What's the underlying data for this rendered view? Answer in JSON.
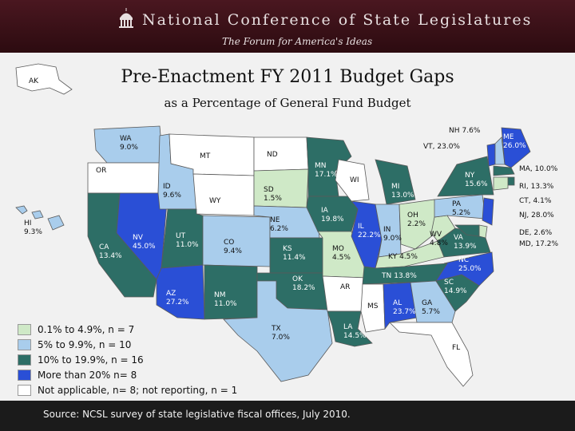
{
  "header": {
    "organization": "National Conference of State Legislatures",
    "tagline": "The Forum for America's Ideas"
  },
  "title": "Pre-Enactment FY 2011 Budget Gaps",
  "subtitle": "as a Percentage of General Fund Budget",
  "colors": {
    "na": "#ffffff",
    "low": "#cfe9c7",
    "mid": "#a9cdec",
    "high": "#2d6e66",
    "top": "#2a4fd6"
  },
  "legend": [
    {
      "category": "low",
      "label": "0.1% to 4.9%, n = 7"
    },
    {
      "category": "mid",
      "label": "5% to 9.9%, n = 10"
    },
    {
      "category": "high",
      "label": "10% to 19.9%, n = 16"
    },
    {
      "category": "top",
      "label": "More than 20% n= 8"
    },
    {
      "category": "na",
      "label": "Not applicable, n= 8; not reporting, n = 1"
    }
  ],
  "states": [
    {
      "abbr": "AK",
      "value": "",
      "category": "na"
    },
    {
      "abbr": "HI",
      "value": "9.3%",
      "category": "mid"
    },
    {
      "abbr": "WA",
      "value": "9.0%",
      "category": "mid"
    },
    {
      "abbr": "OR",
      "value": "",
      "category": "na"
    },
    {
      "abbr": "CA",
      "value": "13.4%",
      "category": "high"
    },
    {
      "abbr": "NV",
      "value": "45.0%",
      "category": "top"
    },
    {
      "abbr": "ID",
      "value": "9.6%",
      "category": "mid"
    },
    {
      "abbr": "MT",
      "value": "",
      "category": "na"
    },
    {
      "abbr": "WY",
      "value": "",
      "category": "na"
    },
    {
      "abbr": "UT",
      "value": "11.0%",
      "category": "high"
    },
    {
      "abbr": "CO",
      "value": "9.4%",
      "category": "mid"
    },
    {
      "abbr": "AZ",
      "value": "27.2%",
      "category": "top"
    },
    {
      "abbr": "NM",
      "value": "11.0%",
      "category": "high"
    },
    {
      "abbr": "ND",
      "value": "",
      "category": "na"
    },
    {
      "abbr": "SD",
      "value": "1.5%",
      "category": "low"
    },
    {
      "abbr": "NE",
      "value": "6.2%",
      "category": "mid"
    },
    {
      "abbr": "KS",
      "value": "11.4%",
      "category": "high"
    },
    {
      "abbr": "OK",
      "value": "18.2%",
      "category": "high"
    },
    {
      "abbr": "TX",
      "value": "7.0%",
      "category": "mid"
    },
    {
      "abbr": "MN",
      "value": "17.1%",
      "category": "high"
    },
    {
      "abbr": "IA",
      "value": "19.8%",
      "category": "high"
    },
    {
      "abbr": "MO",
      "value": "4.5%",
      "category": "low"
    },
    {
      "abbr": "AR",
      "value": "",
      "category": "na"
    },
    {
      "abbr": "LA",
      "value": "14.5%",
      "category": "high"
    },
    {
      "abbr": "WI",
      "value": "",
      "category": "na"
    },
    {
      "abbr": "IL",
      "value": "22.2%",
      "category": "top"
    },
    {
      "abbr": "IN",
      "value": "9.0%",
      "category": "mid"
    },
    {
      "abbr": "MI",
      "value": "13.0%",
      "category": "high"
    },
    {
      "abbr": "OH",
      "value": "2.2%",
      "category": "low"
    },
    {
      "abbr": "KY",
      "value": "4.5%",
      "category": "low"
    },
    {
      "abbr": "TN",
      "value": "13.8%",
      "category": "high"
    },
    {
      "abbr": "MS",
      "value": "",
      "category": "na"
    },
    {
      "abbr": "AL",
      "value": "23.7%",
      "category": "top"
    },
    {
      "abbr": "GA",
      "value": "5.7%",
      "category": "mid"
    },
    {
      "abbr": "FL",
      "value": "",
      "category": "na"
    },
    {
      "abbr": "SC",
      "value": "14.9%",
      "category": "high"
    },
    {
      "abbr": "NC",
      "value": "25.0%",
      "category": "top"
    },
    {
      "abbr": "VA",
      "value": "13.9%",
      "category": "high"
    },
    {
      "abbr": "WV",
      "value": "4.8%",
      "category": "low"
    },
    {
      "abbr": "PA",
      "value": "5.2%",
      "category": "mid"
    },
    {
      "abbr": "NY",
      "value": "15.6%",
      "category": "high"
    },
    {
      "abbr": "VT",
      "value": "23.0%",
      "category": "top"
    },
    {
      "abbr": "NH",
      "value": "7.6%",
      "category": "mid"
    },
    {
      "abbr": "ME",
      "value": "26.0%",
      "category": "top"
    },
    {
      "abbr": "MA",
      "value": "10.0%",
      "category": "high"
    },
    {
      "abbr": "RI",
      "value": "13.3%",
      "category": "high"
    },
    {
      "abbr": "CT",
      "value": "4.1%",
      "category": "low"
    },
    {
      "abbr": "NJ",
      "value": "28.0%",
      "category": "top"
    },
    {
      "abbr": "DE",
      "value": "2.6%",
      "category": "low"
    },
    {
      "abbr": "MD",
      "value": "17.2%",
      "category": "high"
    }
  ],
  "source": "Source: NCSL survey of state legislative fiscal offices, July 2010."
}
